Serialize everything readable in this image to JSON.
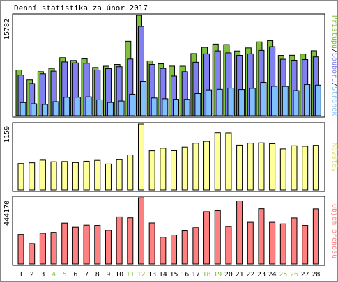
{
  "title": "Denní statistika za únor 2017",
  "colors": {
    "hits": "#80c040",
    "files": "#8080f0",
    "pages": "#80c0ff",
    "visits": "#ffff99",
    "volume": "#ff8080",
    "weekend_label": "#80c040",
    "weekday_label": "#000000",
    "frame": "#000000",
    "background": "#ffffff",
    "legend_visits_label": "#e0e070",
    "legend_volume_label": "#ff8080"
  },
  "chart_data": [
    {
      "type": "bar",
      "panel": "hits-files-pages",
      "y_max_label": "15782",
      "ylim": [
        0,
        15782
      ],
      "categories": [
        "1",
        "2",
        "3",
        "4",
        "5",
        "6",
        "7",
        "8",
        "9",
        "10",
        "11",
        "12",
        "13",
        "14",
        "15",
        "16",
        "17",
        "18",
        "19",
        "20",
        "21",
        "22",
        "23",
        "24",
        "25",
        "26",
        "27",
        "28"
      ],
      "legend": [
        {
          "key": "pages",
          "label": "Stránek"
        },
        {
          "key": "sep1",
          "label": "/"
        },
        {
          "key": "files",
          "label": "Souborů"
        },
        {
          "key": "sep2",
          "label": "/"
        },
        {
          "key": "hits",
          "label": "Přístupů"
        }
      ],
      "series": [
        {
          "key": "hits",
          "values": [
            7180,
            5620,
            6920,
            7450,
            9120,
            8680,
            8940,
            7580,
            7780,
            8050,
            11690,
            15782,
            8610,
            8160,
            7790,
            7780,
            9760,
            10740,
            11250,
            11170,
            10170,
            10650,
            11590,
            11790,
            9470,
            9500,
            9690,
            10200
          ]
        },
        {
          "key": "files",
          "values": [
            6400,
            5050,
            6600,
            7000,
            8450,
            8300,
            8250,
            7180,
            7400,
            7700,
            8900,
            14030,
            8050,
            7440,
            6250,
            6920,
            8400,
            9710,
            10180,
            9870,
            9480,
            9710,
            10260,
            10840,
            8870,
            8710,
            8820,
            9240
          ]
        },
        {
          "key": "pages",
          "values": [
            2050,
            1860,
            1760,
            2190,
            2870,
            2880,
            2940,
            2470,
            2070,
            2290,
            3350,
            5320,
            2760,
            2640,
            2560,
            2550,
            3450,
            4040,
            4130,
            4320,
            4100,
            4290,
            5200,
            4610,
            4590,
            3940,
            4890,
            4790
          ]
        }
      ]
    },
    {
      "type": "bar",
      "panel": "visits",
      "y_max_label": "1159",
      "ylim": [
        0,
        1159
      ],
      "categories": [
        "1",
        "2",
        "3",
        "4",
        "5",
        "6",
        "7",
        "8",
        "9",
        "10",
        "11",
        "12",
        "13",
        "14",
        "15",
        "16",
        "17",
        "18",
        "19",
        "20",
        "21",
        "22",
        "23",
        "24",
        "25",
        "26",
        "27",
        "28"
      ],
      "legend": [
        {
          "key": "visits",
          "label": "Návštěv"
        }
      ],
      "series": [
        {
          "key": "visits",
          "values": [
            467,
            480,
            526,
            498,
            502,
            484,
            507,
            522,
            459,
            533,
            616,
            1159,
            688,
            734,
            690,
            754,
            821,
            853,
            1004,
            1001,
            788,
            822,
            827,
            812,
            721,
            777,
            769,
            785
          ]
        }
      ]
    },
    {
      "type": "bar",
      "panel": "volume",
      "y_max_label": "444170",
      "ylim": [
        0,
        444170
      ],
      "categories": [
        "1",
        "2",
        "3",
        "4",
        "5",
        "6",
        "7",
        "8",
        "9",
        "10",
        "11",
        "12",
        "13",
        "14",
        "15",
        "16",
        "17",
        "18",
        "19",
        "20",
        "21",
        "22",
        "23",
        "24",
        "25",
        "26",
        "27",
        "28"
      ],
      "legend": [
        {
          "key": "volume",
          "label": "Objem přenosů"
        }
      ],
      "series": [
        {
          "key": "volume",
          "values": [
            198000,
            136000,
            206000,
            212000,
            275000,
            247000,
            261000,
            259000,
            225000,
            316000,
            310000,
            444170,
            276000,
            179000,
            194000,
            222000,
            244000,
            351000,
            358000,
            252000,
            423000,
            280000,
            371000,
            280000,
            270000,
            309000,
            259000,
            370000
          ]
        }
      ]
    }
  ],
  "weekend_days": [
    "4",
    "5",
    "11",
    "12",
    "18",
    "19",
    "25",
    "26"
  ]
}
